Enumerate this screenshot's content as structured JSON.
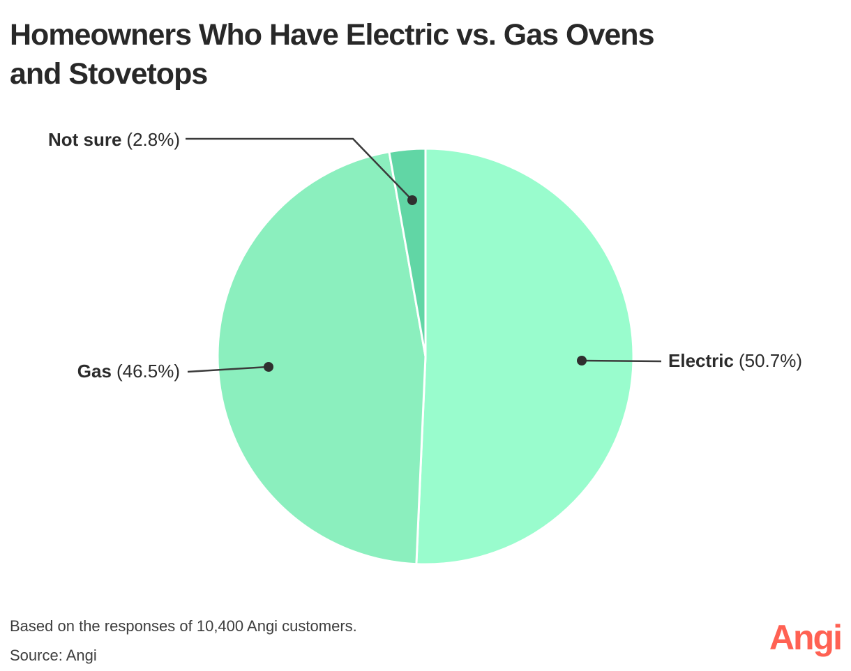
{
  "title": {
    "text": "Homeowners Who Have Electric vs. Gas Ovens and Stovetops",
    "lines": [
      "Homeowners Who Have Electric vs. Gas Ovens",
      "and Stovetops"
    ]
  },
  "chart_data": {
    "type": "pie",
    "title": "Homeowners Who Have Electric vs. Gas Ovens and Stovetops",
    "categories": [
      "Electric",
      "Gas",
      "Not sure"
    ],
    "values": [
      50.7,
      46.5,
      2.8
    ],
    "unit": "percent",
    "colors": [
      "#99fccd",
      "#8befbe",
      "#61d6a5"
    ],
    "start_angle": "top",
    "direction": "clockwise",
    "legend_position": "external-callouts-with-leader-lines",
    "separator_color": "#ffffff"
  },
  "callouts": {
    "electric": {
      "name": "Electric",
      "pct": "(50.7%)"
    },
    "gas": {
      "name": "Gas",
      "pct": "(46.5%)"
    },
    "not_sure": {
      "name": "Not sure",
      "pct": "(2.8%)"
    }
  },
  "footer": {
    "note": "Based on the responses of 10,400 Angi customers.",
    "source": "Source: Angi",
    "logo_text": "Angi",
    "logo_color": "#ff6153"
  },
  "styles": {
    "title_color": "#282828",
    "label_color": "#2b2b2b",
    "leader_line_color": "#3a3a3a",
    "background": "#ffffff"
  }
}
